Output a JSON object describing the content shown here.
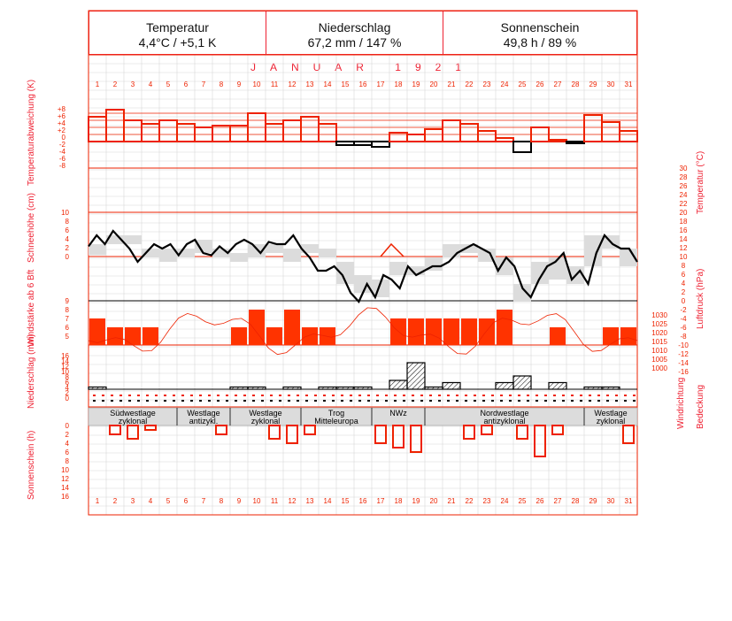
{
  "header": {
    "temperature": {
      "label": "Temperatur",
      "value": "4,4°C / +5,1 K"
    },
    "precipitation": {
      "label": "Niederschlag",
      "value": "67,2 mm / 147 %"
    },
    "sunshine": {
      "label": "Sonnenschein",
      "value": "49,8 h / 89 %"
    }
  },
  "month_title": "JANUAR 1921",
  "axis_labels": {
    "temp_dev": "Temperaturabweichung (K)",
    "snow": "Schneehöhe (cm)",
    "wind": "Windstärke ab 6 Bft",
    "precip": "Niederschlag (mm)",
    "sun": "Sonnenschein (h)",
    "temp": "Temperatur (°C)",
    "pressure": "Luftdruck (hPa)",
    "wind_dir": "Windrichtung",
    "cloud": "Bedeckung"
  },
  "colors": {
    "accent": "#ee2200",
    "fill": "#ff3300",
    "grid": "#d8d8d8",
    "shade": "#dcdcdc"
  },
  "chart_data": {
    "type": "line",
    "days": [
      1,
      2,
      3,
      4,
      5,
      6,
      7,
      8,
      9,
      10,
      11,
      12,
      13,
      14,
      15,
      16,
      17,
      18,
      19,
      20,
      21,
      22,
      23,
      24,
      25,
      26,
      27,
      28,
      29,
      30,
      31
    ],
    "temp_deviation_ticks": [
      "+8",
      "+6",
      "+4",
      "+2",
      "0",
      "-2",
      "-4",
      "-6",
      "-8"
    ],
    "temperature_ticks": [
      30,
      28,
      26,
      24,
      22,
      20,
      18,
      16,
      14,
      12,
      10,
      8,
      6,
      4,
      2,
      0,
      -2,
      -4,
      -6,
      -8,
      -10,
      -12,
      -14,
      -16
    ],
    "snow_ticks": [
      10,
      8,
      6,
      4,
      2,
      0
    ],
    "wind_ticks": [
      9,
      8,
      7,
      6,
      5
    ],
    "precip_ticks": [
      16,
      14,
      12,
      10,
      8,
      6,
      4,
      2,
      0
    ],
    "pressure_ticks": [
      1030,
      1025,
      1020,
      1015,
      1010,
      1005,
      1000
    ],
    "sun_ticks": [
      0,
      2,
      4,
      6,
      8,
      10,
      12,
      14,
      16
    ],
    "temp_deviation": [
      7,
      9,
      6,
      5,
      6,
      5,
      4,
      4.5,
      4.5,
      8,
      5,
      6,
      7,
      5,
      -1,
      -1,
      -1.5,
      2.5,
      2,
      3.5,
      6,
      5,
      3,
      1,
      -3,
      4,
      0.5,
      -0.5,
      7.5,
      5.5,
      3
    ],
    "temperature_curve": [
      2.5,
      5,
      3,
      6,
      4,
      2,
      -1,
      1,
      3,
      2,
      3,
      0.5,
      3,
      4,
      1,
      0.5,
      2.5,
      1,
      3,
      4,
      3,
      1,
      3.5,
      3,
      3,
      5,
      2,
      0,
      -3,
      -3,
      -2,
      -4,
      -8,
      -10,
      -6,
      -9,
      -4,
      -5,
      -7,
      -2,
      -4,
      -3,
      -2,
      -2,
      -1,
      1,
      2,
      3,
      2,
      1,
      -3,
      0,
      -2,
      -7,
      -9,
      -5,
      -2,
      -1,
      1,
      -5,
      -3,
      -6,
      1,
      5,
      3,
      2,
      2,
      -1
    ],
    "temperature_band": [
      [
        0.5,
        3
      ],
      [
        3,
        5
      ],
      [
        3,
        5
      ],
      [
        0,
        2
      ],
      [
        -1,
        2
      ],
      [
        0,
        2
      ],
      [
        1,
        4
      ],
      [
        0,
        2
      ],
      [
        -1,
        1
      ],
      [
        0,
        3
      ],
      [
        1,
        3
      ],
      [
        -1,
        2
      ],
      [
        1,
        3
      ],
      [
        0,
        2
      ],
      [
        -6,
        -1
      ],
      [
        -8,
        -4
      ],
      [
        -9,
        -5
      ],
      [
        -4,
        -1
      ],
      [
        -4,
        -2
      ],
      [
        -3,
        0
      ],
      [
        0,
        3
      ],
      [
        1,
        3
      ],
      [
        -1,
        2
      ],
      [
        -4,
        0
      ],
      [
        -10,
        -6
      ],
      [
        -6,
        -1
      ],
      [
        -5,
        0
      ],
      [
        -6,
        -2
      ],
      [
        -2,
        5
      ],
      [
        2,
        5
      ],
      [
        -2,
        2
      ]
    ],
    "precipitation": [
      1,
      0,
      0,
      0,
      0,
      0,
      0,
      0,
      1,
      1,
      0,
      1,
      0,
      1,
      1,
      1,
      0,
      4,
      12,
      1,
      3,
      0,
      0,
      3,
      6,
      0,
      3,
      0,
      1,
      1,
      0
    ],
    "sunshine": [
      0,
      2,
      3,
      1,
      0,
      0,
      0,
      2,
      0,
      0,
      3,
      4,
      2,
      0,
      0,
      0,
      4,
      5,
      6,
      0,
      0,
      3,
      2,
      0,
      3,
      7,
      2,
      0,
      0,
      0,
      4
    ],
    "wind_strength": [
      7,
      6,
      6,
      6,
      0,
      0,
      0,
      0,
      6,
      8,
      6,
      8,
      6,
      6,
      0,
      0,
      0,
      7,
      7,
      7,
      7,
      7,
      7,
      8,
      0,
      0,
      6,
      0,
      0,
      6,
      6
    ],
    "weather_types": [
      {
        "label": "Südwestlage\nzyklonal",
        "from": 1,
        "to": 5
      },
      {
        "label": "Westlage\nantizykl.",
        "from": 6,
        "to": 8
      },
      {
        "label": "Westlage\nzyklonal",
        "from": 9,
        "to": 12
      },
      {
        "label": "Trog\nMitteleuropa",
        "from": 13,
        "to": 16
      },
      {
        "label": "NWz",
        "from": 17,
        "to": 19
      },
      {
        "label": "Nordwestlage\nantizyklonal",
        "from": 20,
        "to": 28
      },
      {
        "label": "Westlage\nzyklonal",
        "from": 29,
        "to": 31
      }
    ]
  }
}
